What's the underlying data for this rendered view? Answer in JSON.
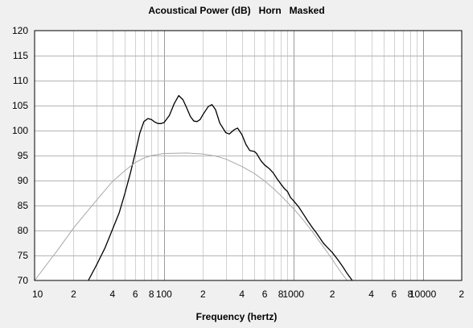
{
  "chart_data": {
    "type": "line",
    "title": "Acoustical Power (dB)   Horn   Masked",
    "xlabel": "Frequency (hertz)",
    "ylabel": "",
    "x_scale": "log",
    "xlim": [
      10,
      20000
    ],
    "ylim": [
      70,
      120
    ],
    "grid": true,
    "y_ticks": [
      "70",
      "75",
      "80",
      "85",
      "90",
      "95",
      "100",
      "105",
      "110",
      "115",
      "120"
    ],
    "x_ticks": [
      {
        "value": 10,
        "label": "10"
      },
      {
        "value": 20,
        "label": "2"
      },
      {
        "value": 40,
        "label": "4"
      },
      {
        "value": 60,
        "label": "6"
      },
      {
        "value": 80,
        "label": "8"
      },
      {
        "value": 100,
        "label": "100"
      },
      {
        "value": 200,
        "label": "2"
      },
      {
        "value": 400,
        "label": "4"
      },
      {
        "value": 600,
        "label": "6"
      },
      {
        "value": 800,
        "label": "8"
      },
      {
        "value": 1000,
        "label": "1000"
      },
      {
        "value": 2000,
        "label": "2"
      },
      {
        "value": 4000,
        "label": "4"
      },
      {
        "value": 6000,
        "label": "6"
      },
      {
        "value": 8000,
        "label": "8"
      },
      {
        "value": 10000,
        "label": "10000"
      },
      {
        "value": 20000,
        "label": "2"
      }
    ],
    "series": [
      {
        "color": "#000000",
        "width": 1.3,
        "points": [
          [
            26,
            70
          ],
          [
            30,
            73
          ],
          [
            35,
            76.5
          ],
          [
            40,
            80.2
          ],
          [
            45,
            83.5
          ],
          [
            50,
            87.5
          ],
          [
            55,
            91.5
          ],
          [
            60,
            95.5
          ],
          [
            65,
            99.5
          ],
          [
            70,
            101.8
          ],
          [
            75,
            102.4
          ],
          [
            80,
            102.2
          ],
          [
            85,
            101.7
          ],
          [
            90,
            101.4
          ],
          [
            95,
            101.4
          ],
          [
            100,
            101.6
          ],
          [
            110,
            103
          ],
          [
            120,
            105.4
          ],
          [
            130,
            107
          ],
          [
            140,
            106.2
          ],
          [
            150,
            104.5
          ],
          [
            160,
            102.8
          ],
          [
            170,
            101.9
          ],
          [
            180,
            101.8
          ],
          [
            190,
            102.2
          ],
          [
            200,
            103.2
          ],
          [
            220,
            104.8
          ],
          [
            235,
            105.2
          ],
          [
            250,
            104.2
          ],
          [
            270,
            101.5
          ],
          [
            300,
            99.6
          ],
          [
            320,
            99.3
          ],
          [
            350,
            100.2
          ],
          [
            370,
            100.5
          ],
          [
            400,
            99.2
          ],
          [
            430,
            97.2
          ],
          [
            460,
            96
          ],
          [
            500,
            95.8
          ],
          [
            520,
            95.4
          ],
          [
            560,
            94
          ],
          [
            600,
            93.1
          ],
          [
            650,
            92.4
          ],
          [
            700,
            91.5
          ],
          [
            750,
            90.3
          ],
          [
            800,
            89.3
          ],
          [
            850,
            88.4
          ],
          [
            900,
            87.8
          ],
          [
            950,
            86.6
          ],
          [
            1000,
            86
          ],
          [
            1100,
            84.7
          ],
          [
            1200,
            83.2
          ],
          [
            1300,
            81.8
          ],
          [
            1400,
            80.6
          ],
          [
            1500,
            79.6
          ],
          [
            1600,
            78.5
          ],
          [
            1700,
            77.5
          ],
          [
            1800,
            76.8
          ],
          [
            2000,
            75.6
          ],
          [
            2200,
            74.2
          ],
          [
            2400,
            72.8
          ],
          [
            2600,
            71.4
          ],
          [
            2850,
            70
          ]
        ]
      },
      {
        "color": "#a8a8a8",
        "width": 1,
        "points": [
          [
            10,
            70
          ],
          [
            15,
            76
          ],
          [
            20,
            80.5
          ],
          [
            30,
            86
          ],
          [
            40,
            89.8
          ],
          [
            50,
            92
          ],
          [
            60,
            93.6
          ],
          [
            70,
            94.5
          ],
          [
            80,
            95
          ],
          [
            100,
            95.4
          ],
          [
            150,
            95.5
          ],
          [
            200,
            95.3
          ],
          [
            250,
            94.9
          ],
          [
            300,
            94.3
          ],
          [
            400,
            92.8
          ],
          [
            500,
            91.4
          ],
          [
            600,
            89.9
          ],
          [
            700,
            88.4
          ],
          [
            800,
            87
          ],
          [
            1000,
            84.4
          ],
          [
            1200,
            82
          ],
          [
            1400,
            79.8
          ],
          [
            1600,
            77.7
          ],
          [
            1800,
            75.9
          ],
          [
            2000,
            74.2
          ],
          [
            2200,
            72.6
          ],
          [
            2400,
            71.2
          ],
          [
            2600,
            70
          ]
        ]
      }
    ]
  }
}
